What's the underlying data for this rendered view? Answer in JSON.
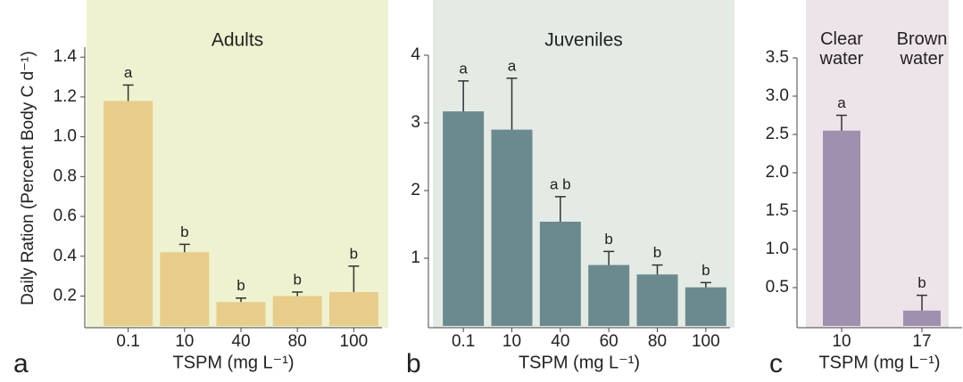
{
  "chart_data": [
    {
      "type": "bar",
      "panel_label": "a",
      "title": "Adults",
      "y_label": "Daily Ration (Percent Body C d⁻¹)",
      "x_label": "TSPM (mg L⁻¹)",
      "categories": [
        "0.1",
        "10",
        "40",
        "80",
        "100"
      ],
      "values": [
        1.18,
        0.42,
        0.17,
        0.2,
        0.22
      ],
      "errors": [
        0.08,
        0.04,
        0.02,
        0.02,
        0.13
      ],
      "sig_labels": [
        "a",
        "b",
        "b",
        "b",
        "b"
      ],
      "color": "#e8cd8a",
      "background": "#eef2d0",
      "ylim": [
        0.05,
        1.45
      ],
      "yticks": [
        0.2,
        0.4,
        0.6,
        0.8,
        {
          "value": 1,
          "label": "1.0"
        },
        1.2,
        1.4
      ]
    },
    {
      "type": "bar",
      "panel_label": "b",
      "title": "Juveniles",
      "x_label": "TSPM (mg L⁻¹)",
      "categories": [
        "0.1",
        "10",
        "40",
        "60",
        "80",
        "100"
      ],
      "values": [
        3.17,
        2.9,
        1.54,
        0.9,
        0.76,
        0.57
      ],
      "errors": [
        0.45,
        0.76,
        0.37,
        0.2,
        0.14,
        0.07
      ],
      "sig_labels": [
        "a",
        "a",
        "a b",
        "b",
        "b",
        "b"
      ],
      "color": "#6b8a8f",
      "background": "#e4ebe4",
      "ylim": [
        0,
        4.0
      ],
      "yticks": [
        1,
        2,
        3,
        4
      ]
    },
    {
      "type": "bar",
      "panel_label": "c",
      "x_label": "TSPM (mg L⁻¹)",
      "group_labels": [
        "Clear water",
        "Brown water"
      ],
      "categories": [
        "10",
        "17"
      ],
      "values": [
        2.55,
        0.2
      ],
      "errors": [
        0.2,
        0.2
      ],
      "sig_labels": [
        "a",
        "b"
      ],
      "color": "#9f90b0",
      "background": "#ede4ea",
      "ylim": [
        0,
        3.5
      ],
      "yticks": [
        0.5,
        {
          "value": 1,
          "label": "1.0"
        },
        1.5,
        {
          "value": 2,
          "label": "2.0"
        },
        2.5,
        {
          "value": 3,
          "label": "3.0"
        },
        3.5
      ]
    }
  ]
}
